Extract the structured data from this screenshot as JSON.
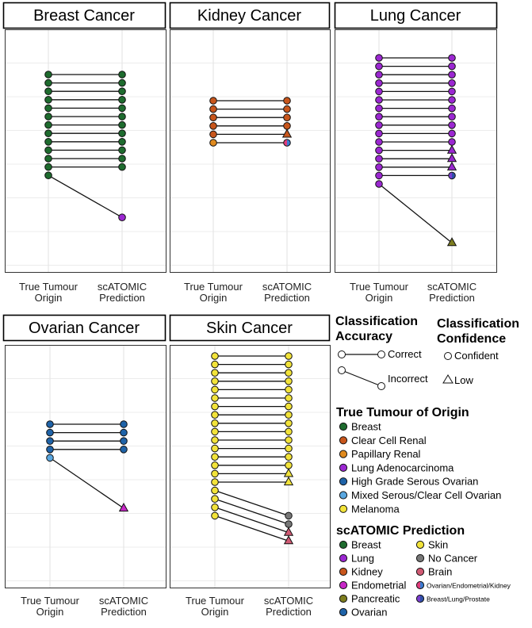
{
  "panels": [
    {
      "title": "Breast Cancer"
    },
    {
      "title": "Kidney Cancer"
    },
    {
      "title": "Lung Cancer"
    },
    {
      "title": "Ovarian Cancer"
    },
    {
      "title": "Skin Cancer"
    }
  ],
  "axis_labels": {
    "left": [
      "True Tumour",
      "Origin"
    ],
    "right": [
      "scATOMIC",
      "Prediction"
    ]
  },
  "legend": {
    "accuracy_title": [
      "Classification",
      "Accuracy"
    ],
    "accuracy_items": [
      "Correct",
      "Incorrect"
    ],
    "confidence_title": [
      "Classification",
      "Confidence"
    ],
    "confidence_items": [
      "Confident",
      "Low"
    ],
    "origin_title": "True Tumour of Origin",
    "origin_items": [
      {
        "label": "Breast",
        "color": "#1e6b2e"
      },
      {
        "label": "Clear Cell Renal",
        "color": "#c8561c"
      },
      {
        "label": "Papillary Renal",
        "color": "#e08a1e"
      },
      {
        "label": "Lung Adenocarcinoma",
        "color": "#9b27d1"
      },
      {
        "label": "High Grade Serous Ovarian",
        "color": "#1f63a8"
      },
      {
        "label": "Mixed Serous/Clear Cell Ovarian",
        "color": "#5aa7e0"
      },
      {
        "label": "Melanoma",
        "color": "#f2e33a"
      }
    ],
    "prediction_title": "scATOMIC Prediction",
    "prediction_items_left": [
      {
        "label": "Breast",
        "color": "#1e6b2e"
      },
      {
        "label": "Lung",
        "color": "#9b27d1"
      },
      {
        "label": "Kidney",
        "color": "#c8561c"
      },
      {
        "label": "Endometrial",
        "color": "#c627c6"
      },
      {
        "label": "Pancreatic",
        "color": "#7d7d1e"
      },
      {
        "label": "Ovarian",
        "color": "#1f63a8"
      }
    ],
    "prediction_items_right": [
      {
        "label": "Skin",
        "color": "#f2e33a"
      },
      {
        "label": "No Cancer",
        "color": "#777777"
      },
      {
        "label": "Brain",
        "color": "#d05a73"
      },
      {
        "label": "Ovarian/Endometrial/Kidney",
        "colors": [
          "#e03c7c",
          "#3a7ad0"
        ]
      },
      {
        "label": "Breast/Lung/Prostate",
        "colors": [
          "#7a3fd0",
          "#2f4fa8"
        ]
      }
    ]
  },
  "chart_data": [
    {
      "type": "slope",
      "title": "Breast Cancer",
      "links": [
        {
          "origin": "Breast",
          "prediction": "Breast",
          "correct": true,
          "confidence": "Confident",
          "count": 12
        },
        {
          "origin": "Breast",
          "prediction": "Lung",
          "correct": false,
          "confidence": "Confident",
          "count": 1
        }
      ]
    },
    {
      "type": "slope",
      "title": "Kidney Cancer",
      "links": [
        {
          "origin": "Clear Cell Renal",
          "prediction": "Kidney",
          "correct": true,
          "confidence": "Confident",
          "count": 4
        },
        {
          "origin": "Clear Cell Renal",
          "prediction": "Kidney",
          "correct": true,
          "confidence": "Low",
          "count": 1
        },
        {
          "origin": "Papillary Renal",
          "prediction": "Ovarian/Endometrial/Kidney",
          "correct": true,
          "confidence": "Confident",
          "count": 1
        }
      ]
    },
    {
      "type": "slope",
      "title": "Lung Cancer",
      "links": [
        {
          "origin": "Lung Adenocarcinoma",
          "prediction": "Lung",
          "correct": true,
          "confidence": "Confident",
          "count": 11
        },
        {
          "origin": "Lung Adenocarcinoma",
          "prediction": "Lung",
          "correct": true,
          "confidence": "Low",
          "count": 3
        },
        {
          "origin": "Lung Adenocarcinoma",
          "prediction": "Breast/Lung/Prostate",
          "correct": true,
          "confidence": "Confident",
          "count": 1
        },
        {
          "origin": "Lung Adenocarcinoma",
          "prediction": "Pancreatic",
          "correct": false,
          "confidence": "Low",
          "count": 1
        }
      ]
    },
    {
      "type": "slope",
      "title": "Ovarian Cancer",
      "links": [
        {
          "origin": "High Grade Serous Ovarian",
          "prediction": "Ovarian",
          "correct": true,
          "confidence": "Confident",
          "count": 4
        },
        {
          "origin": "Mixed Serous/Clear Cell Ovarian",
          "prediction": "Endometrial",
          "correct": false,
          "confidence": "Low",
          "count": 1
        }
      ]
    },
    {
      "type": "slope",
      "title": "Skin Cancer",
      "links": [
        {
          "origin": "Melanoma",
          "prediction": "Skin",
          "correct": true,
          "confidence": "Confident",
          "count": 14
        },
        {
          "origin": "Melanoma",
          "prediction": "Skin",
          "correct": true,
          "confidence": "Low",
          "count": 2
        },
        {
          "origin": "Melanoma",
          "prediction": "No Cancer",
          "correct": false,
          "confidence": "Confident",
          "count": 2
        },
        {
          "origin": "Melanoma",
          "prediction": "Brain",
          "correct": false,
          "confidence": "Low",
          "count": 2
        }
      ]
    }
  ]
}
